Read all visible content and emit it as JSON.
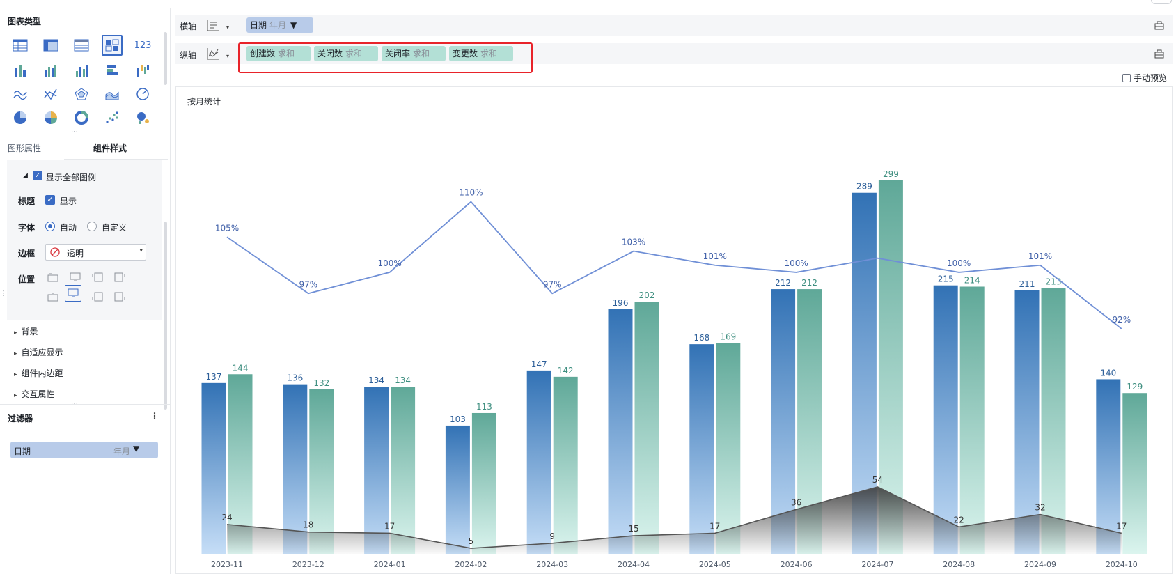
{
  "left_panel": {
    "chart_types_title": "图表类型",
    "number_icon_label": "123",
    "tabs": [
      {
        "label": "图形属性"
      },
      {
        "label": "组件样式"
      }
    ],
    "show_all_legend": "显示全部图例",
    "title_label": "标题",
    "title_show": "显示",
    "font_label": "字体",
    "font_auto": "自动",
    "font_custom": "自定义",
    "border_label": "边框",
    "border_value": "透明",
    "position_label": "位置",
    "collapsibles": [
      "背景",
      "自适应显示",
      "组件内边距",
      "交互属性"
    ],
    "filter_title": "过滤器",
    "filter_field": "日期",
    "filter_granularity": "年月"
  },
  "x_axis": {
    "label": "横轴",
    "fields": [
      {
        "name": "日期",
        "agg": "年月"
      }
    ]
  },
  "y_axis": {
    "label": "纵轴",
    "fields": [
      {
        "name": "创建数",
        "agg": "求和"
      },
      {
        "name": "关闭数",
        "agg": "求和"
      },
      {
        "name": "关闭率",
        "agg": "求和"
      },
      {
        "name": "变更数",
        "agg": "求和"
      }
    ]
  },
  "manual_preview": "手动预览",
  "colors": {
    "created": "#3272b5",
    "closed": "#5fa898",
    "rate_line": "#6f8fd6",
    "change_line": "#555555",
    "accent": "#3a6bc4",
    "highlight": "#e8232a"
  },
  "chart_data": {
    "type": "bar",
    "title": "按月统计",
    "categories": [
      "2023-11",
      "2023-12",
      "2024-01",
      "2024-02",
      "2024-03",
      "2024-04",
      "2024-05",
      "2024-06",
      "2024-07",
      "2024-08",
      "2024-09",
      "2024-10"
    ],
    "series": [
      {
        "values": [
          137,
          136,
          134,
          103,
          147,
          196,
          168,
          212,
          289,
          215,
          211,
          140
        ]
      },
      {
        "values": [
          144,
          132,
          134,
          113,
          142,
          202,
          169,
          212,
          299,
          214,
          213,
          129
        ]
      },
      {
        "values": [
          1.05,
          0.97,
          1.0,
          1.1,
          0.97,
          1.03,
          1.01,
          1.0,
          1.02,
          1.0,
          1.01,
          0.92
        ],
        "labels": [
          "105%",
          "97%",
          "100%",
          "110%",
          "97%",
          "103%",
          "101%",
          "100%",
          "",
          "100%",
          "101%",
          "92%"
        ]
      },
      {
        "values": [
          24,
          18,
          17,
          5,
          9,
          15,
          17,
          36,
          54,
          22,
          32,
          17
        ]
      }
    ],
    "ylim": [
      0,
      310
    ],
    "rate_ylim": [
      0.6,
      1.15
    ],
    "grid": false,
    "legend": "none"
  }
}
